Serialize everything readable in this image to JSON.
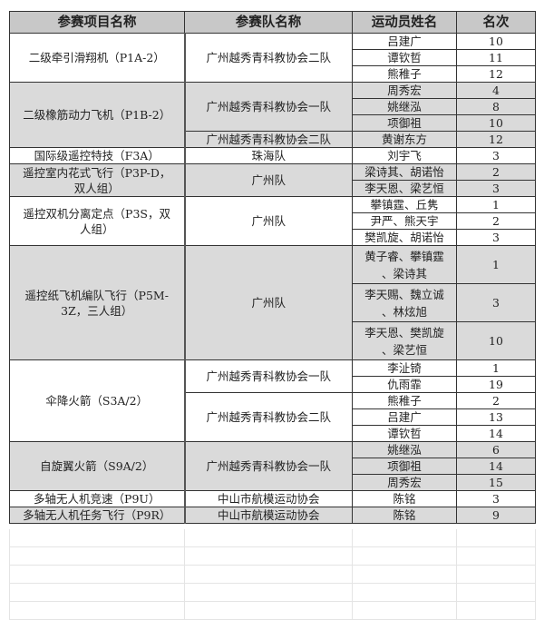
{
  "headers": [
    "参赛项目名称",
    "参赛队名称",
    "运动员姓名",
    "名次"
  ],
  "colors": {
    "header_bg": "#c8c8c8",
    "alt_row_bg": "#dadada",
    "border": "#333333"
  },
  "groups": [
    {
      "event": "二级牵引滑翔机（P1A-2）",
      "shade": false,
      "teams": [
        {
          "team": "广州越秀青科教协会二队",
          "athletes": [
            {
              "name": "吕建广",
              "rank": "10"
            },
            {
              "name": "谭钦哲",
              "rank": "11"
            },
            {
              "name": "熊稚子",
              "rank": "12"
            }
          ]
        }
      ]
    },
    {
      "event": "二级橡筋动力飞机（P1B-2）",
      "shade": true,
      "teams": [
        {
          "team": "广州越秀青科教协会一队",
          "athletes": [
            {
              "name": "周秀宏",
              "rank": "4"
            },
            {
              "name": "姚继泓",
              "rank": "8"
            },
            {
              "name": "项御祖",
              "rank": "10"
            }
          ]
        },
        {
          "team": "广州越秀青科教协会二队",
          "athletes": [
            {
              "name": "黄谢东方",
              "rank": "12"
            }
          ]
        }
      ]
    },
    {
      "event": "国际级遥控特技（F3A）",
      "shade": false,
      "teams": [
        {
          "team": "珠海队",
          "athletes": [
            {
              "name": "刘宇飞",
              "rank": "3"
            }
          ]
        }
      ]
    },
    {
      "event": "遥控室内花式飞行（P3P-D，\n双人组）",
      "shade": true,
      "teams": [
        {
          "team": "广州队",
          "athletes": [
            {
              "name": "梁诗其、胡诺怡",
              "rank": "2"
            },
            {
              "name": "李天恩、梁艺恒",
              "rank": "3"
            }
          ]
        }
      ]
    },
    {
      "event": "遥控双机分离定点（P3S，双\n人组）",
      "shade": false,
      "teams": [
        {
          "team": "广州队",
          "athletes": [
            {
              "name": "攀镇霆、丘隽",
              "rank": "1"
            },
            {
              "name": "尹严、熊天宇",
              "rank": "2"
            },
            {
              "name": "樊凯旋、胡诺怡",
              "rank": "3"
            }
          ]
        }
      ]
    },
    {
      "event": "遥控纸飞机编队飞行（P5M-\n3Z，三人组）",
      "shade": true,
      "tall": true,
      "teams": [
        {
          "team": "广州队",
          "athletes": [
            {
              "name": "黄子睿、攀镇霆\n、梁诗其",
              "rank": "1"
            },
            {
              "name": "李天赐、魏立诚\n、林炫旭",
              "rank": "3"
            },
            {
              "name": "李天恩、樊凯旋\n、梁艺恒",
              "rank": "10"
            }
          ]
        }
      ]
    },
    {
      "event": "伞降火箭（S3A/2）",
      "shade": false,
      "teams": [
        {
          "team": "广州越秀青科教协会一队",
          "athletes": [
            {
              "name": "李沚锜",
              "rank": "1"
            },
            {
              "name": "仇雨霏",
              "rank": "19"
            }
          ]
        },
        {
          "team": "广州越秀青科教协会二队",
          "athletes": [
            {
              "name": "熊稚子",
              "rank": "2"
            },
            {
              "name": "吕建广",
              "rank": "13"
            },
            {
              "name": "谭钦哲",
              "rank": "14"
            }
          ]
        }
      ]
    },
    {
      "event": "自旋翼火箭（S9A/2）",
      "shade": true,
      "teams": [
        {
          "team": "广州越秀青科教协会一队",
          "athletes": [
            {
              "name": "姚继泓",
              "rank": "6"
            },
            {
              "name": "项御祖",
              "rank": "14"
            },
            {
              "name": "周秀宏",
              "rank": "15"
            }
          ]
        }
      ]
    },
    {
      "event": "多轴无人机竞速（P9U）",
      "shade": false,
      "teams": [
        {
          "team": "中山市航模运动协会",
          "athletes": [
            {
              "name": "陈铭",
              "rank": "3"
            }
          ]
        }
      ]
    },
    {
      "event": "多轴无人机任务飞行（P9R）",
      "shade": true,
      "teams": [
        {
          "team": "中山市航模运动协会",
          "athletes": [
            {
              "name": "陈铭",
              "rank": "9"
            }
          ]
        }
      ]
    }
  ]
}
